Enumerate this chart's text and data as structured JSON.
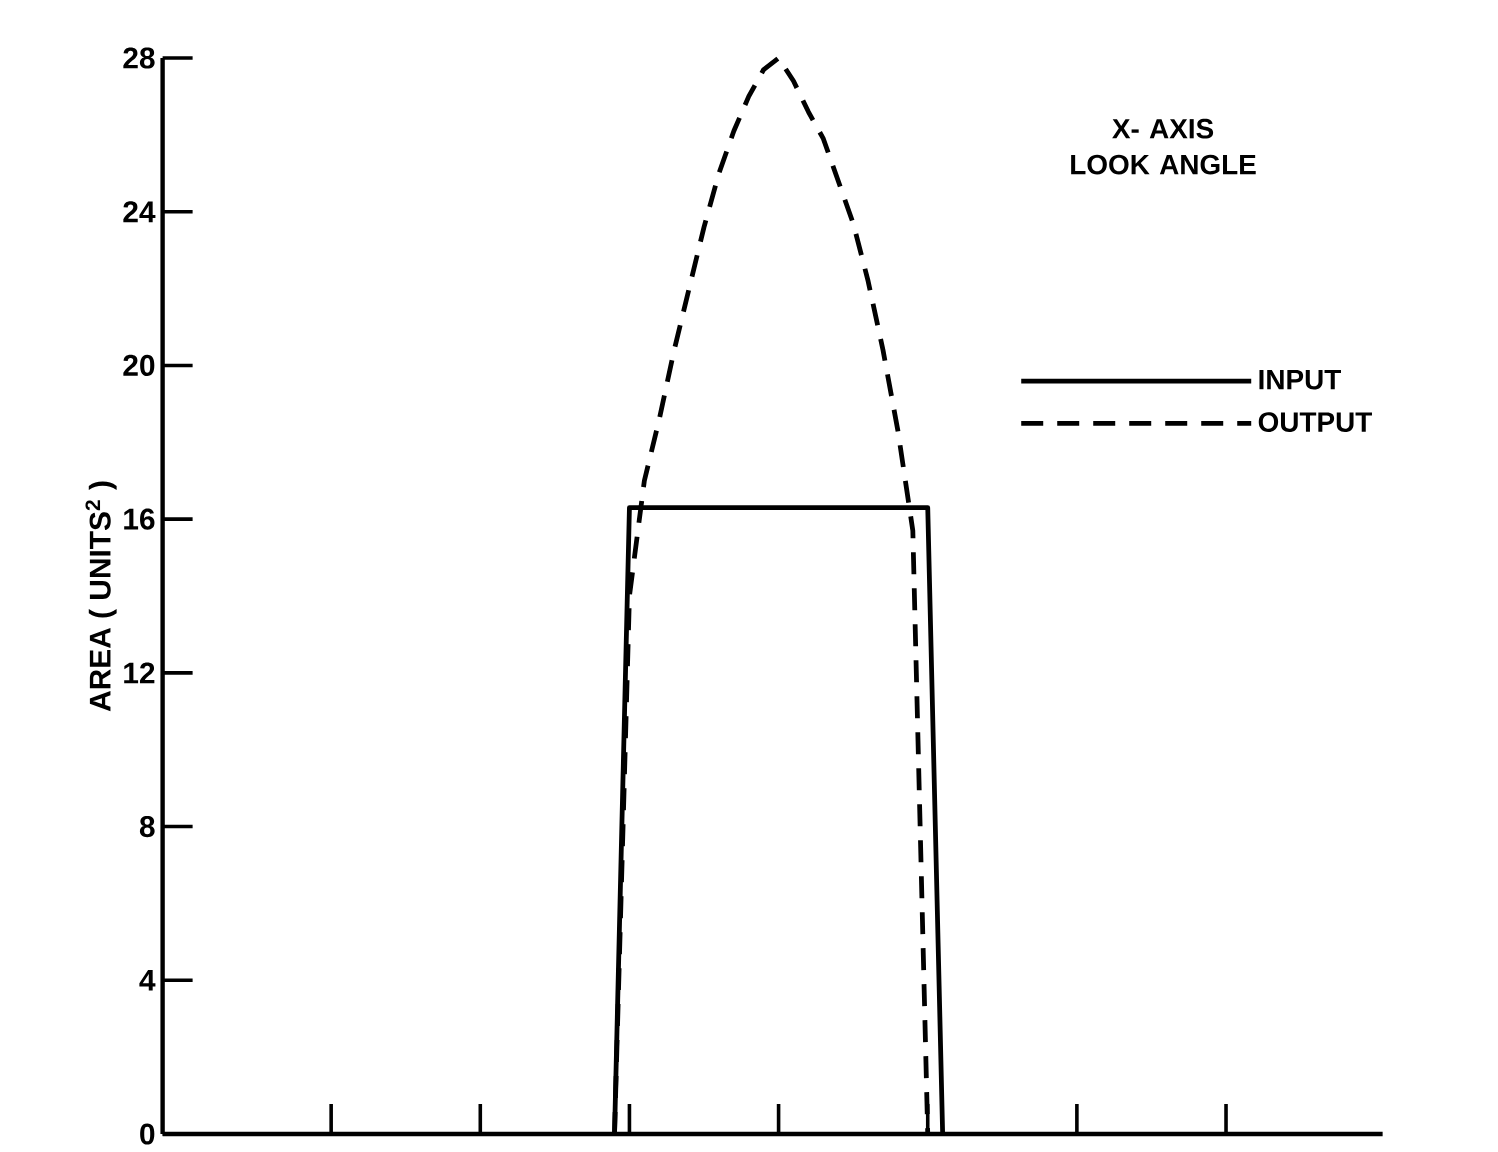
{
  "chart_data": {
    "type": "line",
    "annotations": [
      "X- AXIS\nLOOK ANGLE"
    ],
    "ylabel": "AREA ( UNITS$^{2}$ )",
    "categories": [
      null,
      null,
      null,
      null,
      null,
      null,
      null,
      null,
      null,
      null,
      null,
      null,
      null,
      null,
      null,
      null,
      null,
      null,
      null,
      null,
      null,
      null,
      null,
      null,
      null,
      null,
      null,
      null,
      null,
      null,
      null,
      null,
      null,
      null,
      null,
      null,
      null,
      null,
      null,
      null,
      null,
      null,
      null,
      null,
      null,
      null,
      null,
      null,
      null,
      null,
      null,
      null,
      null,
      null,
      null,
      null,
      null,
      null,
      null,
      null,
      null,
      null,
      null,
      null,
      null,
      null,
      null,
      null,
      null,
      null,
      null,
      null,
      null,
      null,
      null,
      null,
      null,
      null,
      null,
      null,
      null
    ],
    "ylim": [
      0,
      28
    ],
    "yticks": [
      0,
      4,
      8,
      12,
      16,
      20,
      24,
      28
    ],
    "tick_labels": "y",
    "legend": "right",
    "series": [
      {
        "name": "INPUT",
        "color": "#000000",
        "line_style": "solid",
        "values": [
          null,
          null,
          null,
          null,
          null,
          null,
          null,
          null,
          null,
          null,
          null,
          null,
          null,
          null,
          null,
          null,
          null,
          null,
          null,
          null,
          null,
          null,
          null,
          null,
          null,
          null,
          null,
          null,
          null,
          0,
          16.3,
          16.3,
          16.3,
          16.3,
          16.3,
          16.3,
          16.3,
          16.3,
          16.3,
          16.3,
          16.3,
          16.3,
          16.3,
          16.3,
          16.3,
          16.3,
          16.3,
          16.3,
          16.3,
          16.3,
          16.3,
          0,
          null,
          null,
          null,
          null,
          null,
          null,
          null,
          null,
          null,
          null,
          null,
          null,
          null,
          null,
          null,
          null,
          null,
          null,
          null,
          null,
          null,
          null,
          null,
          null,
          null,
          null,
          null,
          null,
          null
        ]
      },
      {
        "name": "OUTPUT",
        "color": "#000000",
        "line_style": "dashed",
        "values": [
          null,
          null,
          null,
          null,
          null,
          null,
          null,
          null,
          null,
          null,
          null,
          null,
          null,
          null,
          null,
          null,
          null,
          null,
          null,
          null,
          null,
          null,
          null,
          null,
          null,
          null,
          null,
          null,
          null,
          0,
          14,
          17.0,
          18.6,
          20.4,
          22.0,
          23.6,
          25.0,
          26.1,
          27.0,
          27.7,
          28.0,
          27.4,
          26.6,
          25.9,
          24.8,
          23.7,
          22.2,
          20.4,
          18.3,
          15.7,
          0,
          null,
          null,
          null,
          null,
          null,
          null,
          null,
          null,
          null,
          null,
          null,
          null,
          null,
          null,
          null,
          null,
          null,
          null,
          null,
          null,
          null,
          null,
          null,
          null,
          null,
          null,
          null,
          null,
          null,
          null
        ]
      }
    ]
  }
}
